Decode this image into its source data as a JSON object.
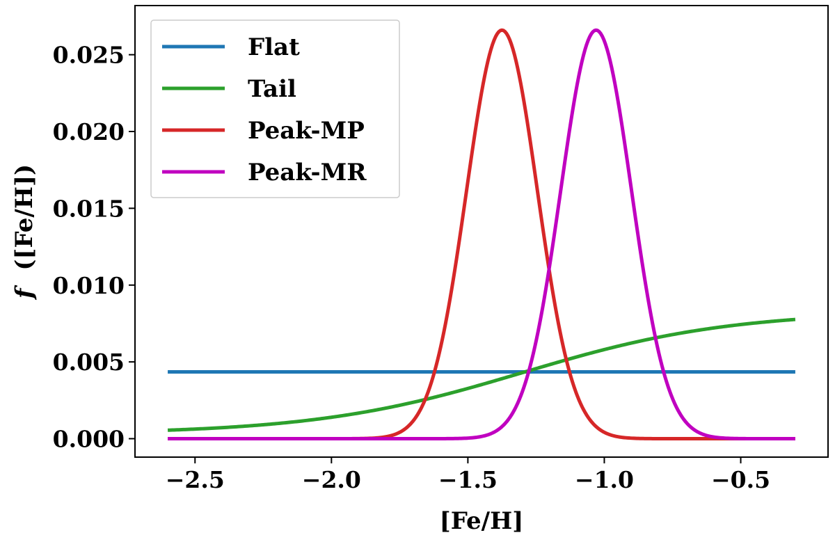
{
  "chart_data": {
    "type": "line",
    "title": "",
    "xlabel": "[Fe/H]",
    "ylabel": "f ([Fe/H])",
    "ylabel_var": "f",
    "ylabel_rest": "([Fe/H])",
    "xlim": [
      -2.72,
      -0.18
    ],
    "ylim": [
      -0.0012,
      0.0282
    ],
    "xticks": [
      -2.5,
      -2.0,
      -1.5,
      -1.0,
      -0.5
    ],
    "xtick_labels": [
      "−2.5",
      "−2.0",
      "−1.5",
      "−1.0",
      "−0.5"
    ],
    "yticks": [
      0.0,
      0.005,
      0.01,
      0.015,
      0.02,
      0.025
    ],
    "ytick_labels": [
      "0.000",
      "0.005",
      "0.010",
      "0.015",
      "0.020",
      "0.025"
    ],
    "grid": false,
    "legend_position": "top-left",
    "x_range": [
      -2.6,
      -0.3
    ],
    "series": [
      {
        "name": "Flat",
        "color": "#1f77b4",
        "kind": "flat",
        "value": 0.00435
      },
      {
        "name": "Tail",
        "color": "#2ca02c",
        "kind": "sigmoid",
        "low": 0.0003,
        "high": 0.0083,
        "center": -1.3,
        "scale": 0.38
      },
      {
        "name": "Peak-MP",
        "color": "#d62728",
        "kind": "gaussian",
        "amplitude": 0.0266,
        "mean": -1.375,
        "sigma": 0.13
      },
      {
        "name": "Peak-MR",
        "color": "#c000c0",
        "kind": "gaussian",
        "amplitude": 0.0266,
        "mean": -1.03,
        "sigma": 0.13
      }
    ]
  }
}
